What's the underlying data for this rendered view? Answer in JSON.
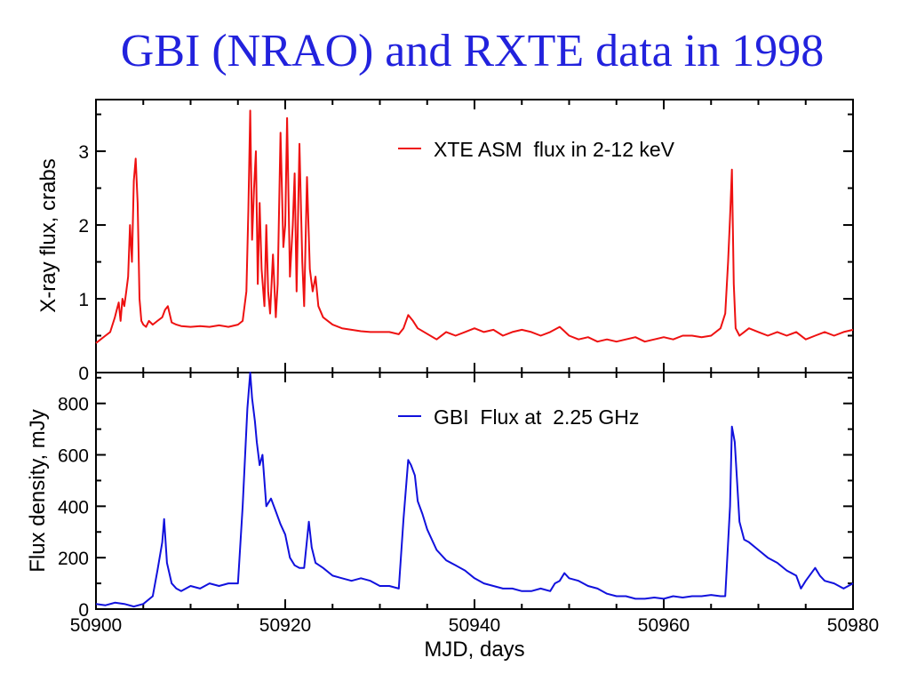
{
  "title": "GBI (NRAO) and RXTE data in 1998",
  "chart_data": [
    {
      "type": "line",
      "ylabel": "X-ray flux, crabs",
      "xlim": [
        50900,
        50980
      ],
      "ylim": [
        0,
        3.7
      ],
      "yticks": [
        0,
        1,
        2,
        3
      ],
      "grid": false,
      "legend_position": "top-right",
      "series": [
        {
          "name": "XTE ASM  flux in 2-12 keV",
          "color": "#ee1111",
          "x": [
            50900.0,
            50900.5,
            50901.0,
            50901.5,
            50902.0,
            50902.2,
            50902.4,
            50902.6,
            50902.8,
            50903.0,
            50903.2,
            50903.4,
            50903.6,
            50903.8,
            50904.0,
            50904.2,
            50904.4,
            50904.6,
            50904.8,
            50905.0,
            50905.3,
            50905.6,
            50906.0,
            50906.5,
            50907.0,
            50907.3,
            50907.6,
            50908.0,
            50908.5,
            50909.0,
            50910.0,
            50911.0,
            50912.0,
            50913.0,
            50914.0,
            50915.0,
            50915.5,
            50915.9,
            50916.1,
            50916.3,
            50916.5,
            50916.7,
            50916.9,
            50917.1,
            50917.3,
            50917.5,
            50917.8,
            50918.0,
            50918.2,
            50918.4,
            50918.7,
            50919.0,
            50919.2,
            50919.5,
            50919.8,
            50920.0,
            50920.2,
            50920.5,
            50920.8,
            50921.0,
            50921.2,
            50921.5,
            50921.8,
            50922.0,
            50922.3,
            50922.6,
            50922.9,
            50923.2,
            50923.5,
            50924.0,
            50924.5,
            50925.0,
            50926.0,
            50927.0,
            50928.0,
            50929.0,
            50930.0,
            50931.0,
            50932.0,
            50932.5,
            50933.0,
            50933.5,
            50934.0,
            50936.0,
            50937.0,
            50938.0,
            50939.0,
            50940.0,
            50941.0,
            50942.0,
            50943.0,
            50944.0,
            50945.0,
            50946.0,
            50947.0,
            50948.0,
            50949.0,
            50950.0,
            50951.0,
            50952.0,
            50953.0,
            50954.0,
            50955.0,
            50956.0,
            50957.0,
            50958.0,
            50959.0,
            50960.0,
            50961.0,
            50962.0,
            50963.0,
            50964.0,
            50965.0,
            50966.0,
            50966.5,
            50966.8,
            50967.0,
            50967.2,
            50967.4,
            50967.6,
            50968.0,
            50968.5,
            50969.0,
            50970.0,
            50971.0,
            50972.0,
            50973.0,
            50974.0,
            50975.0,
            50976.0,
            50977.0,
            50978.0,
            50979.0,
            50980.0
          ],
          "y": [
            0.4,
            0.45,
            0.5,
            0.55,
            0.75,
            0.85,
            0.95,
            0.7,
            1.0,
            0.9,
            1.1,
            1.3,
            2.0,
            1.5,
            2.6,
            2.9,
            2.3,
            1.0,
            0.7,
            0.65,
            0.62,
            0.7,
            0.65,
            0.7,
            0.75,
            0.85,
            0.9,
            0.68,
            0.65,
            0.63,
            0.62,
            0.63,
            0.62,
            0.64,
            0.62,
            0.65,
            0.7,
            1.1,
            2.2,
            3.55,
            1.8,
            2.5,
            3.0,
            1.2,
            2.3,
            1.4,
            0.9,
            2.0,
            1.1,
            0.8,
            1.6,
            0.75,
            1.2,
            3.25,
            1.7,
            2.0,
            3.45,
            1.3,
            2.0,
            2.7,
            1.1,
            3.1,
            1.5,
            0.9,
            2.65,
            1.4,
            1.1,
            1.3,
            0.9,
            0.75,
            0.7,
            0.65,
            0.6,
            0.58,
            0.56,
            0.55,
            0.55,
            0.55,
            0.52,
            0.6,
            0.78,
            0.7,
            0.6,
            0.45,
            0.55,
            0.5,
            0.55,
            0.6,
            0.55,
            0.58,
            0.5,
            0.55,
            0.58,
            0.55,
            0.5,
            0.55,
            0.62,
            0.5,
            0.45,
            0.48,
            0.42,
            0.45,
            0.42,
            0.45,
            0.48,
            0.42,
            0.45,
            0.48,
            0.45,
            0.5,
            0.5,
            0.48,
            0.5,
            0.6,
            0.8,
            1.5,
            2.1,
            2.75,
            1.2,
            0.6,
            0.5,
            0.55,
            0.6,
            0.55,
            0.5,
            0.55,
            0.5,
            0.55,
            0.45,
            0.5,
            0.55,
            0.5,
            0.55,
            0.58
          ]
        }
      ]
    },
    {
      "type": "line",
      "xlabel": "MJD, days",
      "ylabel": "Flux density, mJy",
      "xlim": [
        50900,
        50980
      ],
      "ylim": [
        0,
        920
      ],
      "xticks": [
        50900,
        50920,
        50940,
        50960,
        50980
      ],
      "yticks": [
        0,
        200,
        400,
        600,
        800
      ],
      "grid": false,
      "legend_position": "top-right",
      "series": [
        {
          "name": "GBI  Flux at  2.25 GHz",
          "color": "#1111dd",
          "x": [
            50900.0,
            50901.0,
            50902.0,
            50903.0,
            50904.0,
            50905.0,
            50906.0,
            50906.5,
            50907.0,
            50907.2,
            50907.5,
            50908.0,
            50908.5,
            50909.0,
            50910.0,
            50911.0,
            50912.0,
            50913.0,
            50914.0,
            50915.0,
            50915.5,
            50916.0,
            50916.3,
            50916.5,
            50916.8,
            50917.0,
            50917.3,
            50917.6,
            50918.0,
            50918.5,
            50919.0,
            50919.5,
            50920.0,
            50920.5,
            50921.0,
            50921.5,
            50922.0,
            50922.5,
            50922.8,
            50923.2,
            50923.6,
            50924.0,
            50925.0,
            50926.0,
            50927.0,
            50928.0,
            50929.0,
            50930.0,
            50931.0,
            50932.0,
            50932.5,
            50933.0,
            50933.3,
            50933.7,
            50934.0,
            50934.5,
            50935.0,
            50936.0,
            50937.0,
            50938.0,
            50939.0,
            50940.0,
            50941.0,
            50942.0,
            50943.0,
            50944.0,
            50945.0,
            50946.0,
            50947.0,
            50948.0,
            50948.5,
            50949.0,
            50949.5,
            50950.0,
            50951.0,
            50952.0,
            50953.0,
            50954.0,
            50955.0,
            50956.0,
            50957.0,
            50958.0,
            50959.0,
            50960.0,
            50961.0,
            50962.0,
            50963.0,
            50964.0,
            50965.0,
            50966.0,
            50966.5,
            50967.0,
            50967.2,
            50967.5,
            50968.0,
            50968.5,
            50969.0,
            50970.0,
            50971.0,
            50972.0,
            50973.0,
            50974.0,
            50974.5,
            50975.0,
            50976.0,
            50976.5,
            50977.0,
            50978.0,
            50979.0,
            50980.0
          ],
          "y": [
            20,
            15,
            25,
            20,
            10,
            20,
            50,
            150,
            260,
            350,
            180,
            100,
            80,
            70,
            90,
            80,
            100,
            90,
            100,
            100,
            400,
            780,
            920,
            820,
            730,
            650,
            560,
            600,
            400,
            430,
            380,
            330,
            290,
            200,
            170,
            160,
            160,
            340,
            240,
            180,
            170,
            160,
            130,
            120,
            110,
            120,
            110,
            90,
            90,
            80,
            350,
            580,
            560,
            520,
            420,
            370,
            310,
            230,
            190,
            170,
            150,
            120,
            100,
            90,
            80,
            80,
            70,
            70,
            80,
            70,
            100,
            110,
            140,
            120,
            110,
            90,
            80,
            60,
            50,
            50,
            40,
            40,
            45,
            40,
            50,
            45,
            50,
            50,
            55,
            50,
            50,
            400,
            710,
            650,
            340,
            270,
            260,
            230,
            200,
            180,
            150,
            130,
            80,
            110,
            160,
            130,
            110,
            100,
            80,
            100
          ]
        }
      ]
    }
  ]
}
